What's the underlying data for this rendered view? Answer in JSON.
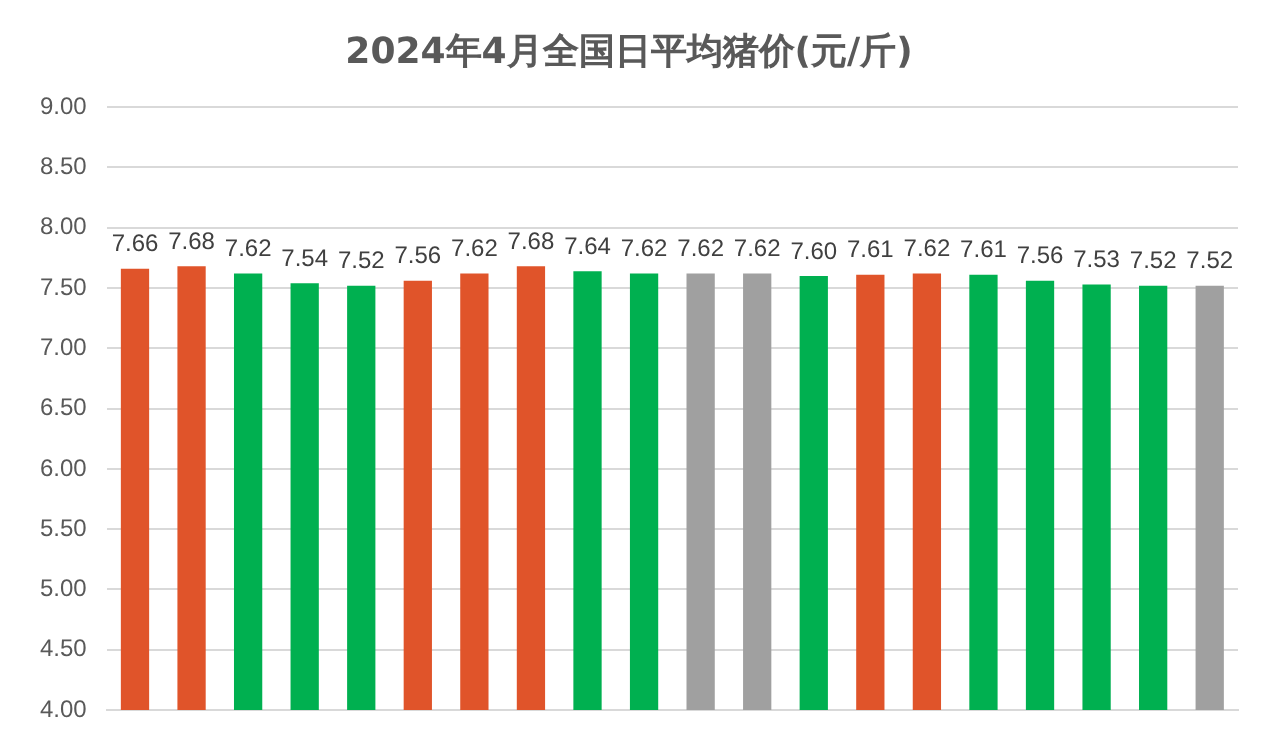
{
  "chart_data": {
    "type": "bar",
    "title": "2024年4月全国日平均猪价(元/斤)",
    "categories": [
      null,
      null,
      null,
      null,
      null,
      null,
      null,
      null,
      null,
      null,
      null,
      null,
      null,
      null,
      null,
      null,
      null,
      null,
      null,
      null
    ],
    "values": [
      7.66,
      7.68,
      7.62,
      7.54,
      7.52,
      7.56,
      7.62,
      7.68,
      7.64,
      7.62,
      7.62,
      7.62,
      7.6,
      7.61,
      7.62,
      7.61,
      7.56,
      7.53,
      7.52,
      7.52
    ],
    "value_labels": [
      "7.66",
      "7.68",
      "7.62",
      "7.54",
      "7.52",
      "7.56",
      "7.62",
      "7.68",
      "7.64",
      "7.62",
      "7.62",
      "7.62",
      "7.60",
      "7.61",
      "7.62",
      "7.61",
      "7.56",
      "7.53",
      "7.52",
      "7.52"
    ],
    "colors": [
      "#e0542a",
      "#e0542a",
      "#00b050",
      "#00b050",
      "#00b050",
      "#e0542a",
      "#e0542a",
      "#e0542a",
      "#00b050",
      "#00b050",
      "#a0a0a0",
      "#a0a0a0",
      "#00b050",
      "#e0542a",
      "#e0542a",
      "#00b050",
      "#00b050",
      "#00b050",
      "#00b050",
      "#a0a0a0"
    ],
    "ylim": [
      4,
      9
    ],
    "yticks": [
      {
        "value": 4,
        "label": "4.00"
      },
      {
        "value": 4.5,
        "label": "4.50"
      },
      {
        "value": 5,
        "label": "5.00"
      },
      {
        "value": 5.5,
        "label": "5.50"
      },
      {
        "value": 6,
        "label": "6.00"
      },
      {
        "value": 6.5,
        "label": "6.50"
      },
      {
        "value": 7,
        "label": "7.00"
      },
      {
        "value": 7.5,
        "label": "7.50"
      },
      {
        "value": 8,
        "label": "8.00"
      },
      {
        "value": 8.5,
        "label": "8.50"
      },
      {
        "value": 9,
        "label": "9.00"
      }
    ],
    "grid": "y",
    "tick_labels": "y"
  }
}
